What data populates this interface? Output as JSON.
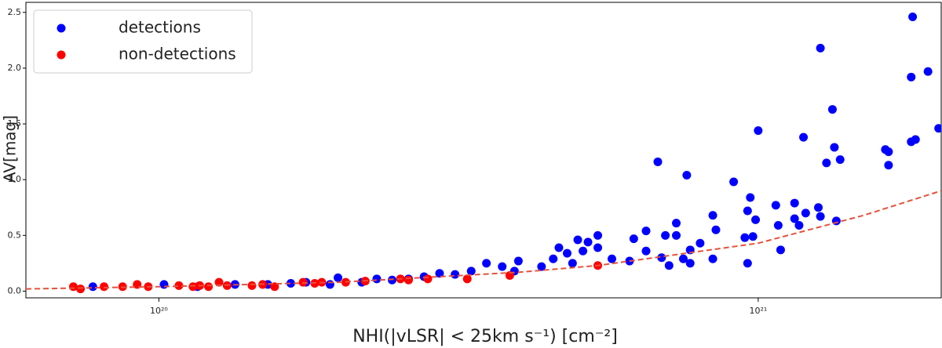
{
  "chart_data": {
    "type": "scatter",
    "x_label": "NHI(|vLSR| < 25km s⁻¹)   [cm⁻²]",
    "y_label": "AV[mag]",
    "xscale": "log",
    "xlim": [
      6e+19,
      2.02e+21
    ],
    "ylim": [
      -0.06,
      2.59
    ],
    "xticks": [
      {
        "value": 1e+20,
        "label": "10²⁰"
      },
      {
        "value": 1e+21,
        "label": "10²¹"
      }
    ],
    "yticks": [
      {
        "value": 0,
        "label": "0.0"
      },
      0.5,
      {
        "value": 1,
        "label": "1.0"
      },
      1.5,
      {
        "value": 2,
        "label": "2.0"
      },
      2.5
    ],
    "legend": "upper left",
    "series": [
      {
        "name": "detections",
        "color": "#0000ff",
        "x": [
          1.81e+21,
          1.27e+21,
          1.8e+21,
          1.92e+21,
          1.33e+21,
          2e+21,
          1e+21,
          1.19e+21,
          1.34e+21,
          1.37e+21,
          1.63e+21,
          1.65e+21,
          1.3e+21,
          1.65e+21,
          1.8e+21,
          1.83e+21,
          6.8e+20,
          7.6e+20,
          9.1e+20,
          9.7e+20,
          9.6e+20,
          1.07e+21,
          1.15e+21,
          1.2e+21,
          1.26e+21,
          1.27e+21,
          1.35e+21,
          1.15e+21,
          1.17e+21,
          1.08e+21,
          9.8e+20,
          9.5e+20,
          9.9e+20,
          9.6e+20,
          1.09e+21,
          8.4e+20,
          8.5e+20,
          7.3e+20,
          7.3e+20,
          7e+20,
          6.5e+20,
          6.5e+20,
          6.2e+20,
          8e+20,
          7.7e+20,
          7.5e+20,
          6.9e+20,
          5.4e+20,
          5.2e+20,
          5e+20,
          5.4e+20,
          5.1e+20,
          4.8e+20,
          4.65e+20,
          4.55e+20,
          4.35e+20,
          3.98e+20,
          3.74e+20,
          3.52e+20,
          3.32e+20,
          3.12e+20,
          2.94e+20,
          2.77e+20,
          2.61e+20,
          2.45e+20,
          2.31e+20,
          2.18e+20,
          1.99e+20,
          1.93e+20,
          1.76e+20,
          1.66e+20,
          1.52e+20,
          1.34e+20,
          1.16e+20,
          1.02e+20,
          7.76e+19,
          5.7e+20,
          6.1e+20,
          4.9e+20,
          3.92e+20,
          7.7e+20,
          8.4e+20,
          7.1e+20
        ],
        "values": [
          2.46,
          2.18,
          1.92,
          1.97,
          1.63,
          1.46,
          1.44,
          1.38,
          1.29,
          1.18,
          1.27,
          1.25,
          1.15,
          1.13,
          1.34,
          1.36,
          1.16,
          1.04,
          0.98,
          0.84,
          0.72,
          0.77,
          0.79,
          0.7,
          0.75,
          0.67,
          0.63,
          0.65,
          0.59,
          0.59,
          0.49,
          0.48,
          0.64,
          0.25,
          0.37,
          0.68,
          0.55,
          0.61,
          0.5,
          0.5,
          0.54,
          0.36,
          0.47,
          0.43,
          0.37,
          0.29,
          0.3,
          0.5,
          0.44,
          0.46,
          0.39,
          0.36,
          0.34,
          0.39,
          0.29,
          0.22,
          0.27,
          0.22,
          0.25,
          0.18,
          0.15,
          0.16,
          0.13,
          0.11,
          0.1,
          0.11,
          0.08,
          0.12,
          0.06,
          0.08,
          0.07,
          0.06,
          0.06,
          0.04,
          0.06,
          0.04,
          0.29,
          0.27,
          0.25,
          0.18,
          0.25,
          0.29,
          0.23
        ]
      },
      {
        "name": "non-detections",
        "color": "#ff0000",
        "x": [
          7.2e+19,
          7.4e+19,
          8.1e+19,
          8.7e+19,
          9.2e+19,
          9.6e+19,
          1.08e+20,
          1.14e+20,
          1.21e+20,
          1.26e+20,
          1.3e+20,
          1.43e+20,
          1.56e+20,
          1.74e+20,
          1.87e+20,
          2.05e+20,
          2.21e+20,
          2.53e+20,
          2.81e+20,
          3.27e+20,
          3.85e+20,
          5.4e+20,
          1.17e+20,
          1.49e+20,
          1.82e+20,
          2.61e+20
        ],
        "values": [
          0.04,
          0.02,
          0.04,
          0.04,
          0.06,
          0.04,
          0.05,
          0.04,
          0.04,
          0.08,
          0.05,
          0.05,
          0.04,
          0.08,
          0.08,
          0.08,
          0.09,
          0.11,
          0.11,
          0.11,
          0.14,
          0.23,
          0.05,
          0.06,
          0.07,
          0.1
        ]
      }
    ],
    "fit": {
      "color": "#e8503a",
      "style": "dashed",
      "x": [
        6e+19,
        1e+20,
        2e+20,
        4e+20,
        5.4e+20,
        1e+21,
        1.5e+21,
        2.02e+21
      ],
      "values": [
        0.02,
        0.04,
        0.08,
        0.17,
        0.23,
        0.43,
        0.68,
        0.9
      ]
    }
  }
}
